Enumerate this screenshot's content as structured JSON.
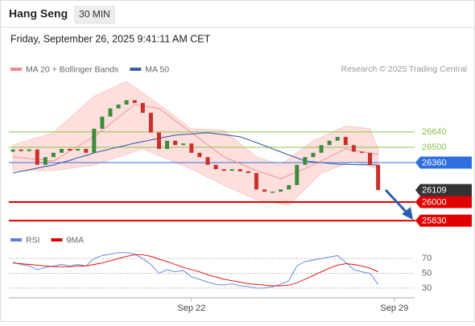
{
  "header": {
    "title": "Hang Seng",
    "interval": "30 MIN",
    "datetime": "Friday, September 26, 2025 9:41:11 AM CET",
    "credit": "Research © 2025 Trading Central"
  },
  "chart_data": [
    {
      "type": "candlestick",
      "categories": [
        null,
        null,
        null,
        null,
        null,
        null,
        null,
        null,
        null,
        null,
        null,
        null,
        null,
        null,
        null,
        null,
        null,
        null,
        null,
        null,
        null,
        null,
        "Sep 22",
        null,
        null,
        null,
        null,
        null,
        null,
        null,
        null,
        null,
        null,
        null,
        null,
        null,
        null,
        null,
        null,
        null,
        null,
        null,
        null,
        null,
        null,
        null,
        null,
        "Sep 29",
        null,
        null
      ],
      "open": [
        26460,
        26480,
        26465,
        26480,
        26340,
        26410,
        26450,
        26485,
        26470,
        26485,
        26450,
        26670,
        26780,
        26855,
        26890,
        26930,
        26905,
        26815,
        26635,
        26485,
        26560,
        26520,
        26535,
        26450,
        26410,
        26340,
        26300,
        26285,
        26300,
        26280,
        26265,
        26115,
        26095,
        26095,
        26115,
        26155,
        26340,
        26410,
        26450,
        26520,
        26560,
        26595,
        26520,
        26460,
        26450,
        26340,
        null,
        null,
        null,
        null
      ],
      "close": [
        26480,
        26465,
        26480,
        26340,
        26410,
        26450,
        26485,
        26470,
        26485,
        26450,
        26670,
        26780,
        26855,
        26890,
        26930,
        26905,
        26815,
        26635,
        26485,
        26560,
        26520,
        26535,
        26450,
        26410,
        26340,
        26300,
        26285,
        26300,
        26280,
        26265,
        26115,
        26095,
        26095,
        26115,
        26155,
        26340,
        26410,
        26450,
        26520,
        26560,
        26595,
        26520,
        26460,
        26450,
        26340,
        26109,
        null,
        null,
        null,
        null
      ],
      "up_color": "#3c8c3c",
      "down_color": "#c8302a",
      "series": [
        {
          "name": "MA 20 + Bollinger Bands",
          "color": "#f08a8a",
          "band_color": "#fde0de",
          "values": [
            26412,
            26405,
            26397,
            26390,
            26382,
            26375,
            26419,
            26464,
            26508,
            26552,
            26596,
            26655,
            26714,
            26773,
            26832,
            26891,
            26879,
            26866,
            26854,
            26799,
            26743,
            26688,
            26633,
            26578,
            26523,
            26467,
            26412,
            26381,
            26350,
            26318,
            26287,
            26262,
            26238,
            26213,
            26244,
            26275,
            26307,
            26338,
            26375,
            26412,
            26449,
            26486,
            26473,
            26460,
            26447,
            26434,
            null,
            null,
            null,
            null
          ],
          "upper": [
            26520,
            26543,
            26565,
            26588,
            26610,
            26633,
            26700,
            26766,
            26833,
            26899,
            26965,
            27000,
            27035,
            27070,
            27100,
            27048,
            26996,
            26943,
            26891,
            26836,
            26780,
            26725,
            26670,
            26666,
            26663,
            26659,
            26655,
            26594,
            26534,
            26473,
            26412,
            26387,
            26363,
            26338,
            26393,
            26449,
            26504,
            26559,
            26592,
            26626,
            26659,
            26692,
            26685,
            26678,
            26670,
            26486,
            null,
            null,
            null,
            null
          ],
          "lower": [
            26287,
            26287,
            26287,
            26287,
            26287,
            26287,
            26297,
            26307,
            26318,
            26328,
            26338,
            26363,
            26387,
            26412,
            26437,
            26461,
            26486,
            26455,
            26424,
            26393,
            26363,
            26332,
            26301,
            26264,
            26228,
            26191,
            26154,
            26121,
            26088,
            26054,
            26021,
            26008,
            25996,
            25983,
            25970,
            26044,
            26117,
            26191,
            26264,
            26292,
            26320,
            26347,
            26375,
            26350,
            26326,
            26301,
            null,
            null,
            null,
            null
          ]
        },
        {
          "name": "MA 50",
          "color": "#3a5fa8",
          "values": [
            26264,
            26280,
            26295,
            26310,
            26325,
            26338,
            26360,
            26380,
            26405,
            26425,
            26449,
            26467,
            26485,
            26503,
            26520,
            26537,
            26552,
            26567,
            26582,
            26597,
            26611,
            26617,
            26622,
            26628,
            26633,
            26624,
            26615,
            26606,
            26596,
            26570,
            26543,
            26515,
            26486,
            26458,
            26430,
            26403,
            26375,
            26368,
            26360,
            26353,
            26346,
            26344,
            26342,
            26340,
            26340,
            26338,
            null,
            null,
            null,
            null
          ]
        }
      ],
      "ylim": [
        25750,
        27110
      ],
      "levels": [
        {
          "value": 26640,
          "color": "#8bc34a",
          "style": "text",
          "line": true
        },
        {
          "value": 26500,
          "color": "#8bc34a",
          "style": "text",
          "line": true
        },
        {
          "value": 26360,
          "color": "#2f6fe0",
          "style": "box",
          "line": true
        },
        {
          "value": 26109,
          "color": "#333333",
          "style": "box",
          "line": false
        },
        {
          "value": 26000,
          "color": "#e00000",
          "style": "box",
          "line": true
        },
        {
          "value": 25830,
          "color": "#e00000",
          "style": "box",
          "line": true
        }
      ]
    },
    {
      "type": "line",
      "series": [
        {
          "name": "RSI",
          "color": "#5b7fd6",
          "values": [
            65,
            62,
            60,
            55,
            58,
            60,
            62,
            60,
            62,
            60,
            70,
            74,
            76,
            78,
            78,
            76,
            70,
            62,
            50,
            55,
            52,
            54,
            45,
            42,
            38,
            35,
            34,
            36,
            33,
            32,
            30,
            30,
            32,
            35,
            40,
            60,
            66,
            68,
            70,
            72,
            74,
            65,
            55,
            52,
            50,
            35,
            null,
            null,
            null,
            null
          ]
        },
        {
          "name": "9MA",
          "color": "#e00000",
          "values": [
            64,
            63,
            62,
            61,
            60,
            59,
            59,
            59,
            60,
            60,
            62,
            64,
            67,
            70,
            73,
            75,
            75,
            73,
            69,
            66,
            62,
            58,
            55,
            52,
            48,
            45,
            42,
            40,
            38,
            36,
            35,
            34,
            33,
            33,
            34,
            37,
            42,
            47,
            52,
            57,
            61,
            63,
            62,
            60,
            57,
            52,
            null,
            null,
            null,
            null
          ]
        }
      ],
      "ylim": [
        19,
        80
      ],
      "yticks": [
        30,
        50,
        70
      ],
      "grid": true
    }
  ]
}
